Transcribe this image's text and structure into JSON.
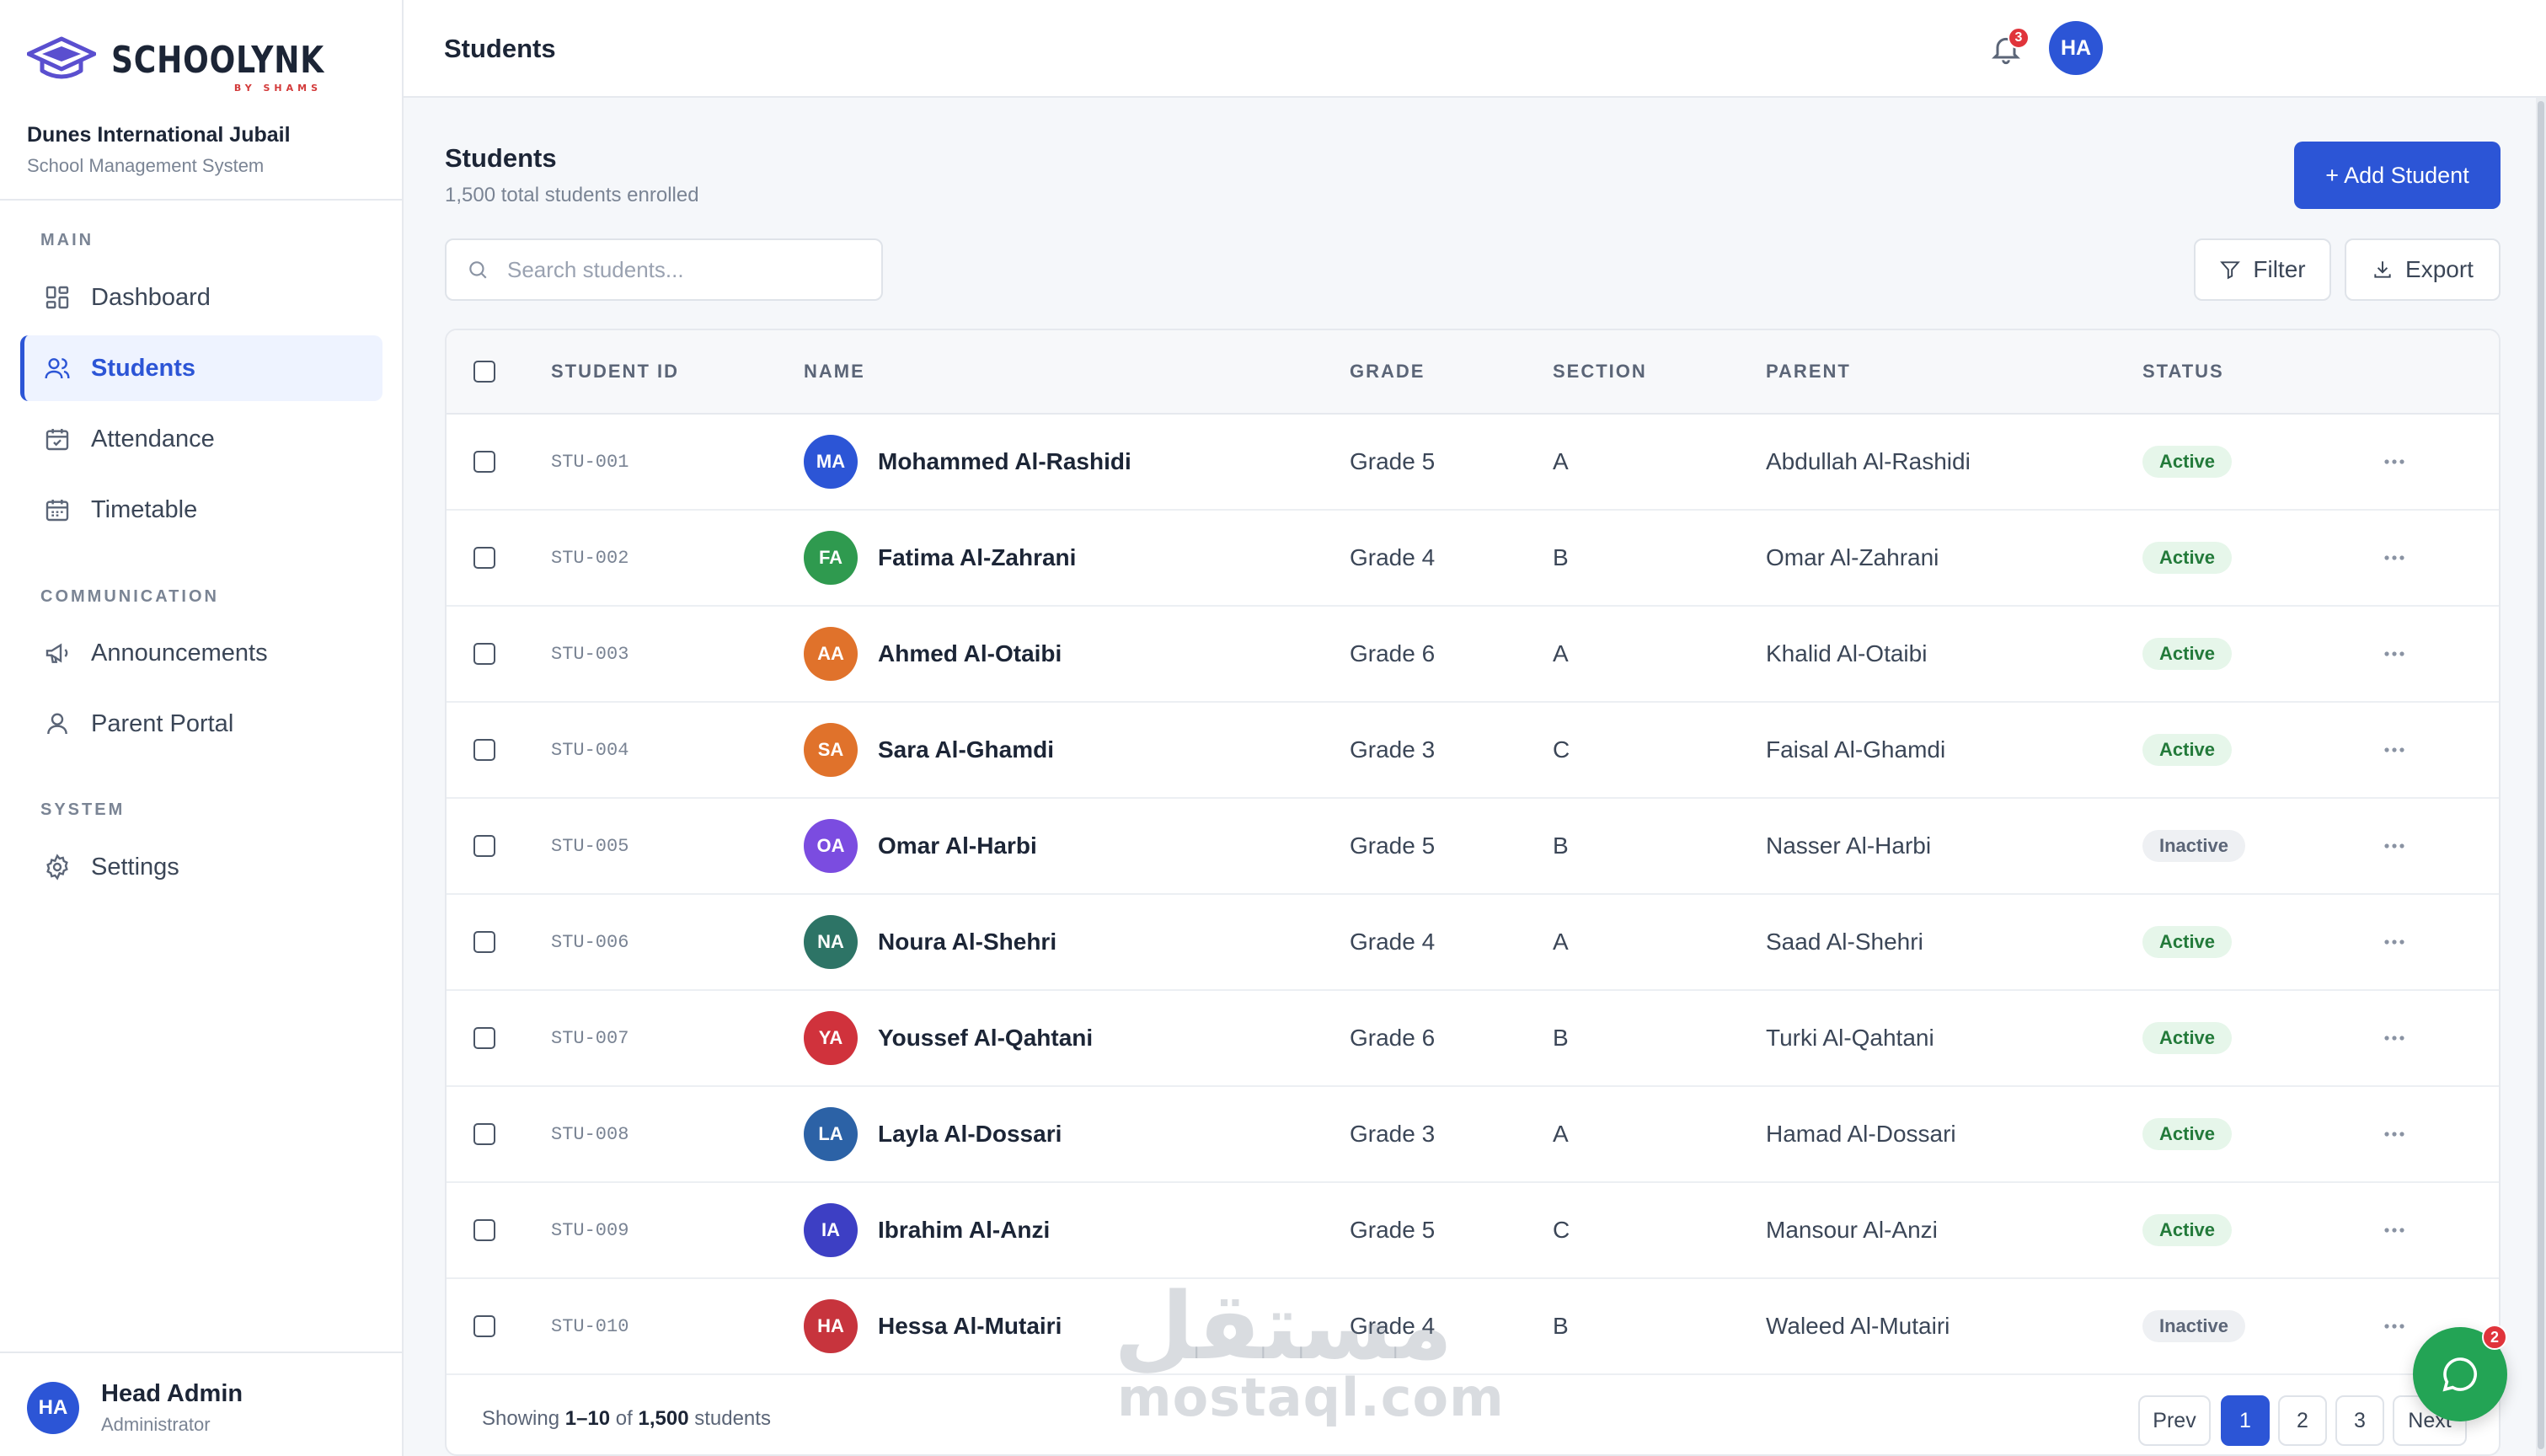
{
  "brand": {
    "name": "SCHOOLYNK",
    "sub": "BY SHAMS",
    "school_name": "Dunes International Jubail",
    "school_sub": "School Management System"
  },
  "sidebar": {
    "sections": [
      {
        "label": "MAIN",
        "items": [
          {
            "label": "Dashboard",
            "icon": "dashboard-icon"
          },
          {
            "label": "Students",
            "icon": "users-icon",
            "active": true
          },
          {
            "label": "Attendance",
            "icon": "calendar-check-icon"
          },
          {
            "label": "Timetable",
            "icon": "calendar-grid-icon"
          }
        ]
      },
      {
        "label": "COMMUNICATION",
        "items": [
          {
            "label": "Announcements",
            "icon": "megaphone-icon"
          },
          {
            "label": "Parent Portal",
            "icon": "user-icon"
          }
        ]
      },
      {
        "label": "SYSTEM",
        "items": [
          {
            "label": "Settings",
            "icon": "gear-icon"
          }
        ]
      }
    ],
    "user": {
      "initials": "HA",
      "name": "Head Admin",
      "role": "Administrator"
    }
  },
  "topbar": {
    "title": "Students",
    "notification_count": "3",
    "avatar_initials": "HA"
  },
  "page": {
    "heading": "Students",
    "count_text": "1,500 total students enrolled",
    "add_button": "+ Add Student",
    "search_placeholder": "Search students...",
    "filter_label": "Filter",
    "export_label": "Export"
  },
  "table": {
    "headers": {
      "student_id": "STUDENT ID",
      "name": "NAME",
      "grade": "GRADE",
      "section": "SECTION",
      "parent": "PARENT",
      "status": "STATUS"
    },
    "rows": [
      {
        "id": "STU-001",
        "initials": "MA",
        "avatar_color": "#2c55d6",
        "name": "Mohammed Al-Rashidi",
        "grade": "Grade 5",
        "section": "A",
        "parent": "Abdullah Al-Rashidi",
        "status": "Active"
      },
      {
        "id": "STU-002",
        "initials": "FA",
        "avatar_color": "#2f9a4f",
        "name": "Fatima Al-Zahrani",
        "grade": "Grade 4",
        "section": "B",
        "parent": "Omar Al-Zahrani",
        "status": "Active"
      },
      {
        "id": "STU-003",
        "initials": "AA",
        "avatar_color": "#e0722b",
        "name": "Ahmed Al-Otaibi",
        "grade": "Grade 6",
        "section": "A",
        "parent": "Khalid Al-Otaibi",
        "status": "Active"
      },
      {
        "id": "STU-004",
        "initials": "SA",
        "avatar_color": "#e0722b",
        "name": "Sara Al-Ghamdi",
        "grade": "Grade 3",
        "section": "C",
        "parent": "Faisal Al-Ghamdi",
        "status": "Active"
      },
      {
        "id": "STU-005",
        "initials": "OA",
        "avatar_color": "#7b4ce0",
        "name": "Omar Al-Harbi",
        "grade": "Grade 5",
        "section": "B",
        "parent": "Nasser Al-Harbi",
        "status": "Inactive"
      },
      {
        "id": "STU-006",
        "initials": "NA",
        "avatar_color": "#2d7466",
        "name": "Noura Al-Shehri",
        "grade": "Grade 4",
        "section": "A",
        "parent": "Saad Al-Shehri",
        "status": "Active"
      },
      {
        "id": "STU-007",
        "initials": "YA",
        "avatar_color": "#d0323c",
        "name": "Youssef Al-Qahtani",
        "grade": "Grade 6",
        "section": "B",
        "parent": "Turki Al-Qahtani",
        "status": "Active"
      },
      {
        "id": "STU-008",
        "initials": "LA",
        "avatar_color": "#2c62a6",
        "name": "Layla Al-Dossari",
        "grade": "Grade 3",
        "section": "A",
        "parent": "Hamad Al-Dossari",
        "status": "Active"
      },
      {
        "id": "STU-009",
        "initials": "IA",
        "avatar_color": "#3d3fc4",
        "name": "Ibrahim Al-Anzi",
        "grade": "Grade 5",
        "section": "C",
        "parent": "Mansour Al-Anzi",
        "status": "Active"
      },
      {
        "id": "STU-010",
        "initials": "HA",
        "avatar_color": "#c7343d",
        "name": "Hessa Al-Mutairi",
        "grade": "Grade 4",
        "section": "B",
        "parent": "Waleed Al-Mutairi",
        "status": "Inactive"
      }
    ],
    "footer": {
      "prefix": "Showing",
      "range": "1–10",
      "of": "of",
      "total": "1,500",
      "suffix": "students"
    },
    "pagination": {
      "prev": "Prev",
      "pages": [
        "1",
        "2",
        "3"
      ],
      "current": "1",
      "next": "Next"
    }
  },
  "chat": {
    "badge_count": "2"
  },
  "watermark": {
    "arabic": "مستقل",
    "latin": "mostaql.com"
  },
  "colors": {
    "accent": "#2c55d6",
    "active_status": "#237a3a",
    "chat": "#23a455",
    "badge": "#e0343b"
  }
}
